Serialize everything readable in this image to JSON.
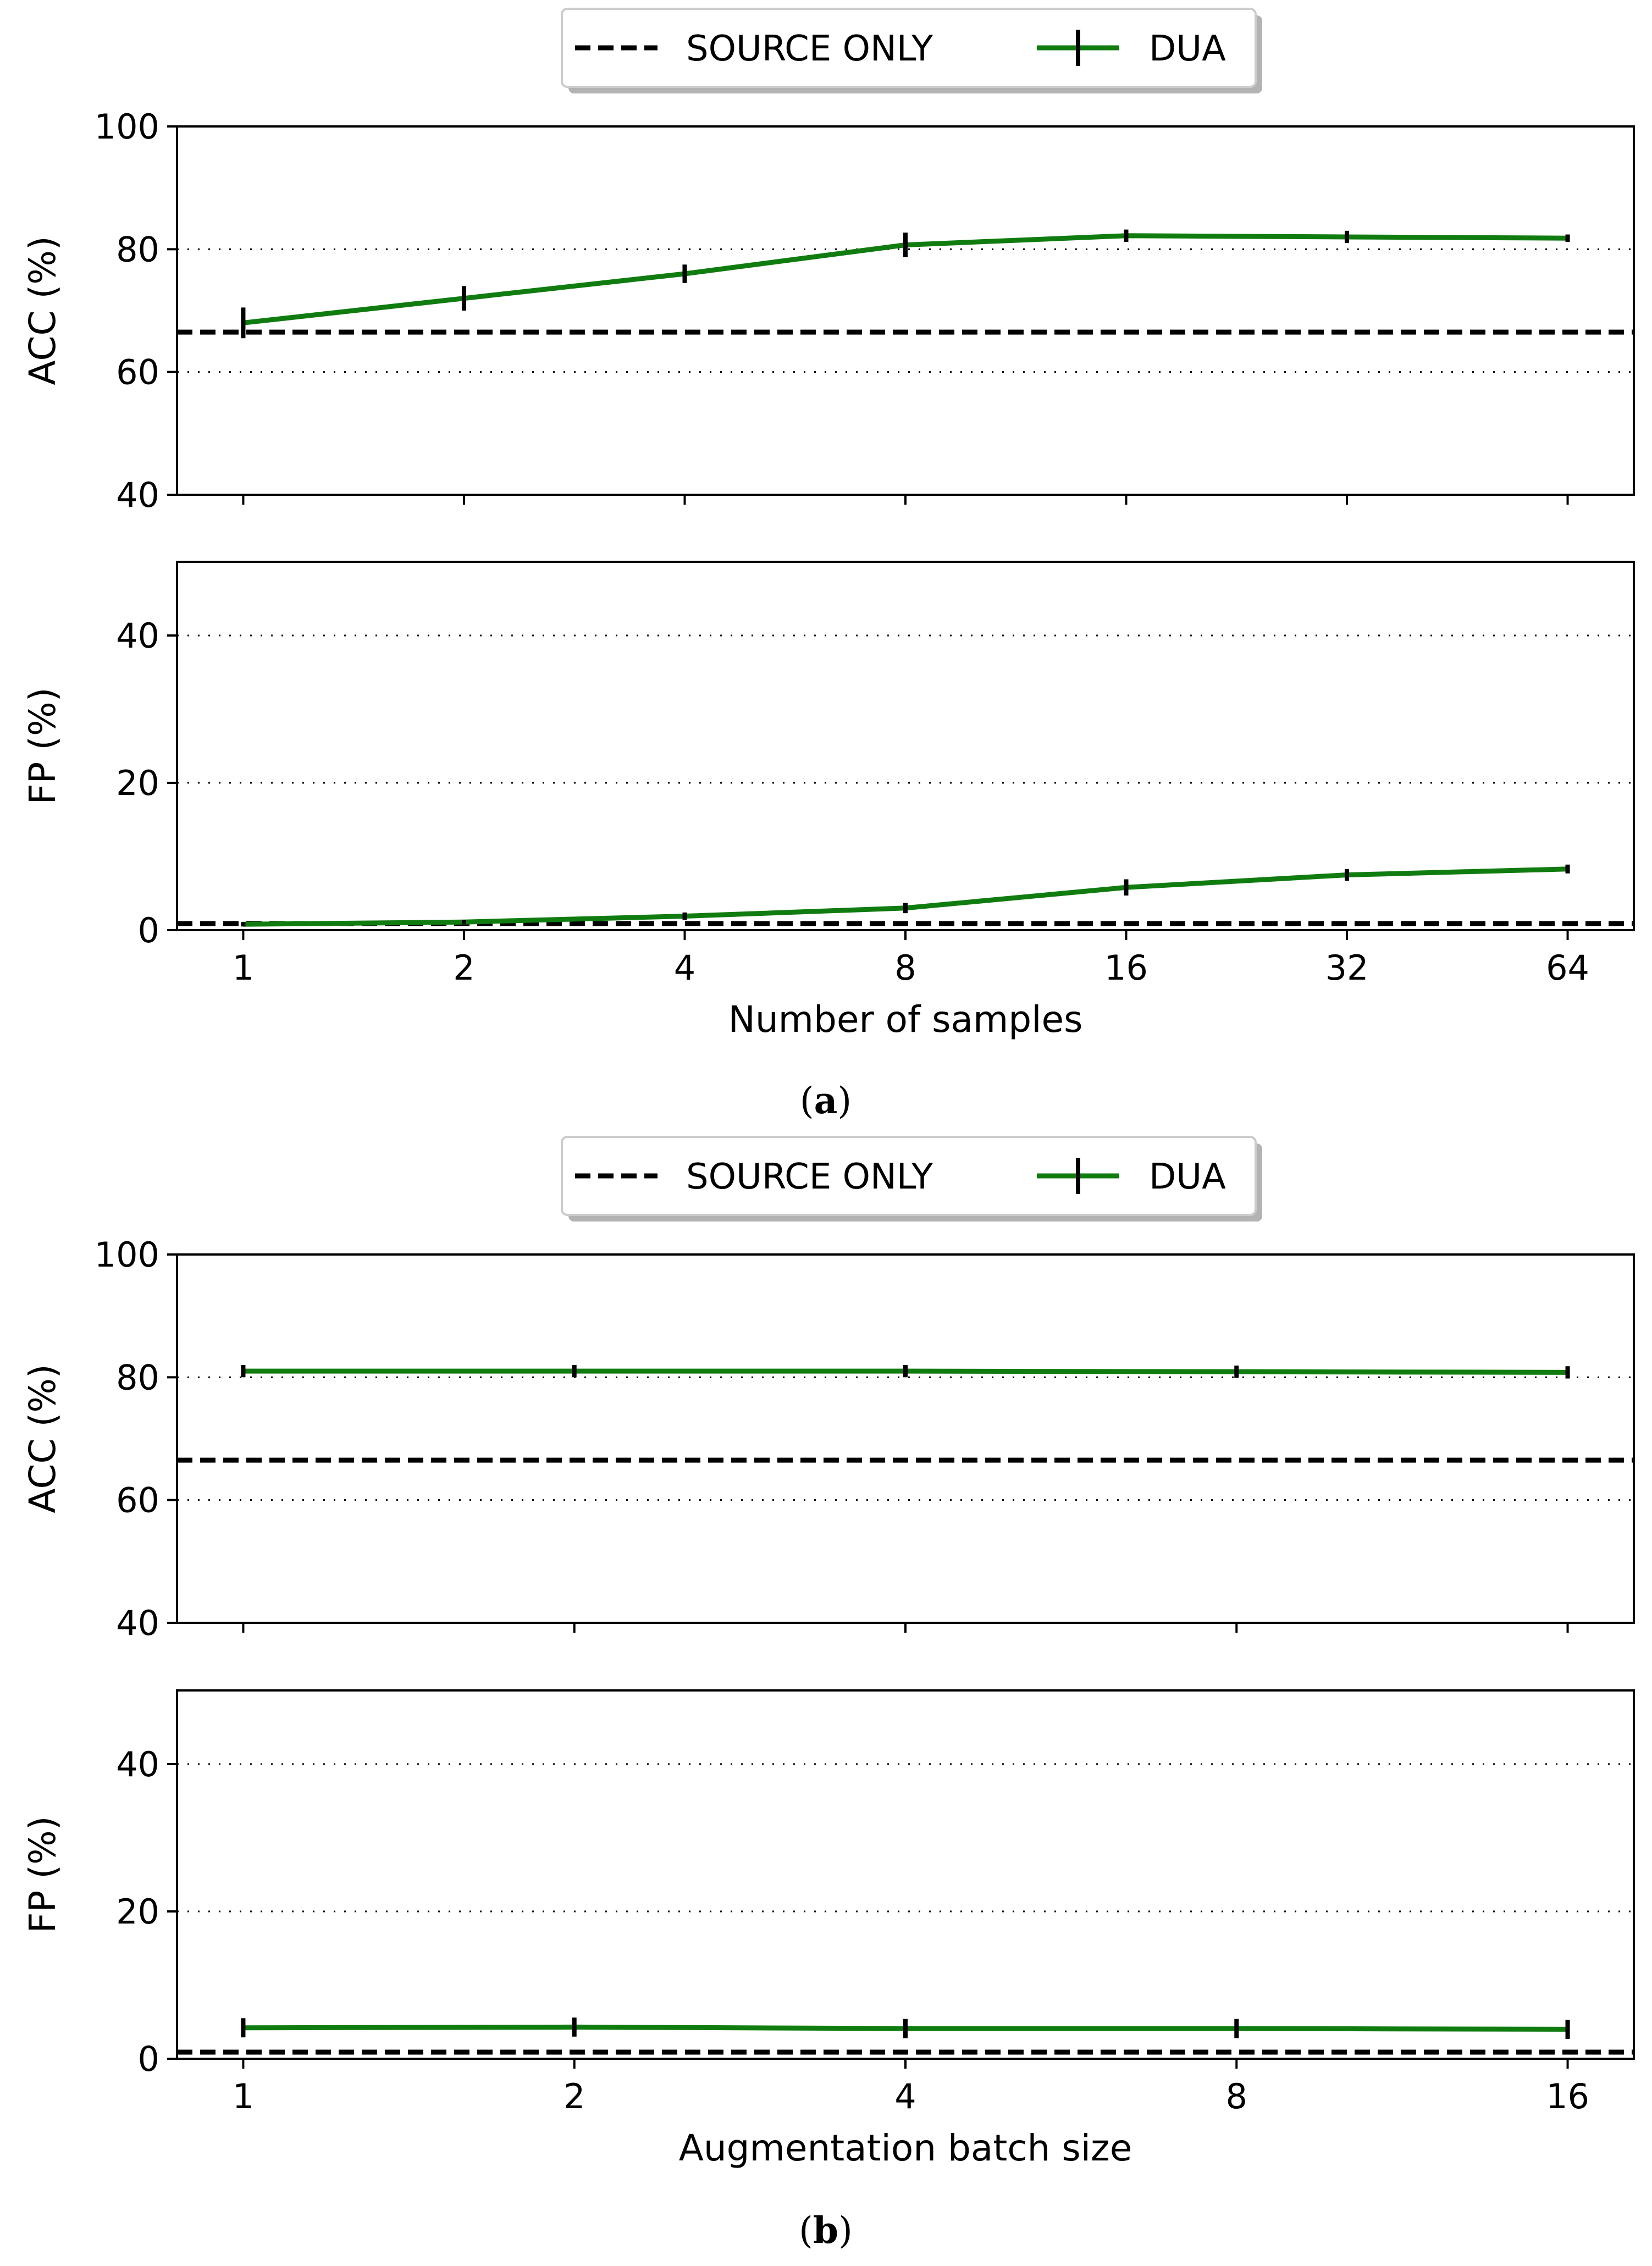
{
  "legend": {
    "source_only": "SOURCE ONLY",
    "dua": "DUA"
  },
  "captions": {
    "a": {
      "open": "(",
      "letter": "a",
      "close": ")"
    },
    "b": {
      "open": "(",
      "letter": "b",
      "close": ")"
    }
  },
  "colors": {
    "dua": "#107c10",
    "source_only": "#000000",
    "errorbar": "#000000"
  },
  "chart_data": [
    {
      "type": "line",
      "panel": "a-top",
      "ylabel": "ACC (%)",
      "xlabel": "",
      "ylim": [
        40,
        100
      ],
      "yticks": [
        40,
        60,
        80,
        100
      ],
      "ygrid": [
        60,
        80
      ],
      "x": [
        "1",
        "2",
        "4",
        "8",
        "16",
        "32",
        "64"
      ],
      "series": [
        {
          "name": "DUA",
          "values": [
            68.0,
            72.0,
            76.0,
            80.7,
            82.2,
            82.0,
            81.8
          ],
          "errors": [
            2.5,
            2.0,
            1.5,
            2.0,
            1.0,
            1.0,
            0.6
          ]
        }
      ],
      "baseline": {
        "name": "SOURCE ONLY",
        "value": 66.5
      }
    },
    {
      "type": "line",
      "panel": "a-bottom",
      "ylabel": "FP (%)",
      "xlabel": "Number of samples",
      "ylim": [
        0,
        50
      ],
      "yticks": [
        0,
        20,
        40
      ],
      "ygrid": [
        20,
        40
      ],
      "x": [
        "1",
        "2",
        "4",
        "8",
        "16",
        "32",
        "64"
      ],
      "series": [
        {
          "name": "DUA",
          "values": [
            0.8,
            1.1,
            1.9,
            3.0,
            5.8,
            7.5,
            8.3
          ],
          "errors": [
            0.3,
            0.3,
            0.5,
            0.7,
            1.1,
            0.8,
            0.6
          ]
        }
      ],
      "baseline": {
        "name": "SOURCE ONLY",
        "value": 0.9
      }
    },
    {
      "type": "line",
      "panel": "b-top",
      "ylabel": "ACC (%)",
      "xlabel": "",
      "ylim": [
        40,
        100
      ],
      "yticks": [
        40,
        60,
        80,
        100
      ],
      "ygrid": [
        60,
        80
      ],
      "x": [
        "1",
        "2",
        "4",
        "8",
        "16"
      ],
      "series": [
        {
          "name": "DUA",
          "values": [
            81.0,
            81.0,
            81.0,
            80.9,
            80.8
          ],
          "errors": [
            1.0,
            1.0,
            1.0,
            1.0,
            1.0
          ]
        }
      ],
      "baseline": {
        "name": "SOURCE ONLY",
        "value": 66.5
      }
    },
    {
      "type": "line",
      "panel": "b-bottom",
      "ylabel": "FP (%)",
      "xlabel": "Augmentation batch size",
      "ylim": [
        0,
        50
      ],
      "yticks": [
        0,
        20,
        40
      ],
      "ygrid": [
        20,
        40
      ],
      "x": [
        "1",
        "2",
        "4",
        "8",
        "16"
      ],
      "series": [
        {
          "name": "DUA",
          "values": [
            4.2,
            4.3,
            4.1,
            4.1,
            4.0
          ],
          "errors": [
            1.3,
            1.3,
            1.3,
            1.3,
            1.3
          ]
        }
      ],
      "baseline": {
        "name": "SOURCE ONLY",
        "value": 0.9
      }
    }
  ]
}
